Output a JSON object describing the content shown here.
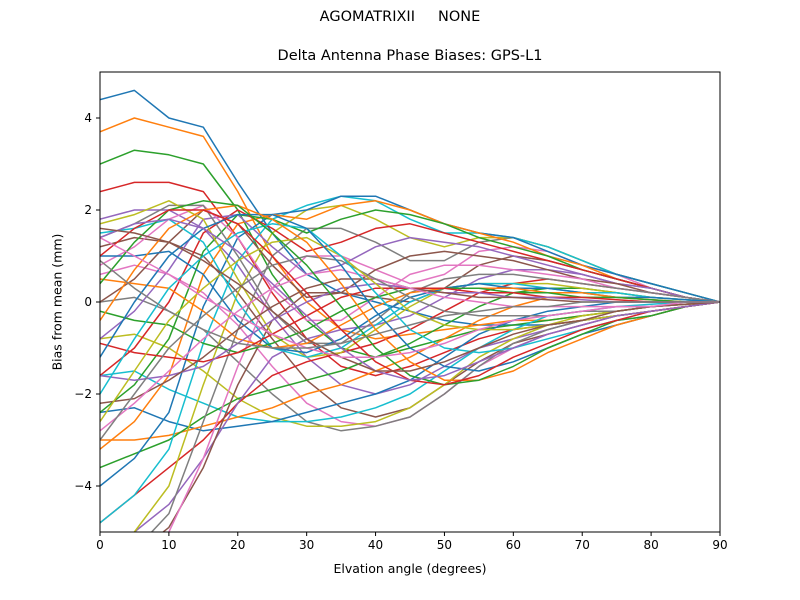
{
  "figure": {
    "suptitle": "AGOMATRIXII     NONE"
  },
  "chart_data": {
    "type": "line",
    "title": "Delta Antenna Phase Biases: GPS-L1",
    "xlabel": "Elvation angle (degrees)",
    "ylabel": "Bias from mean (mm)",
    "xlim": [
      0,
      90
    ],
    "ylim": [
      -5,
      5
    ],
    "xticks": [
      0,
      10,
      20,
      30,
      40,
      50,
      60,
      70,
      80,
      90
    ],
    "yticks": [
      -4,
      -2,
      0,
      2,
      4
    ],
    "grid": false,
    "legend": "none",
    "colors": [
      "#1f77b4",
      "#ff7f0e",
      "#2ca02c",
      "#d62728",
      "#9467bd",
      "#8c564b",
      "#e377c2",
      "#7f7f7f",
      "#bcbd22",
      "#17becf"
    ],
    "x": [
      0,
      5,
      10,
      15,
      20,
      25,
      30,
      35,
      40,
      45,
      50,
      55,
      60,
      65,
      70,
      75,
      80,
      85,
      90
    ],
    "series": [
      {
        "values": [
          4.4,
          4.6,
          4.0,
          3.8,
          2.6,
          1.5,
          0.6,
          0.2,
          0.0,
          -0.2,
          -0.4,
          -0.5,
          -0.5,
          -0.5,
          -0.4,
          -0.3,
          -0.2,
          -0.1,
          0.0
        ]
      },
      {
        "values": [
          3.7,
          4.0,
          3.8,
          3.6,
          2.4,
          1.0,
          0.0,
          -0.6,
          -0.8,
          -0.7,
          -0.6,
          -0.5,
          -0.4,
          -0.4,
          -0.3,
          -0.2,
          -0.1,
          -0.05,
          0.0
        ]
      },
      {
        "values": [
          3.0,
          3.3,
          3.2,
          3.0,
          2.0,
          0.6,
          -0.4,
          -1.0,
          -1.2,
          -1.0,
          -0.8,
          -0.6,
          -0.5,
          -0.4,
          -0.3,
          -0.2,
          -0.1,
          -0.05,
          0.0
        ]
      },
      {
        "values": [
          2.4,
          2.6,
          2.6,
          2.4,
          1.4,
          0.2,
          -0.8,
          -1.4,
          -1.6,
          -1.4,
          -1.1,
          -0.8,
          -0.6,
          -0.5,
          -0.4,
          -0.3,
          -0.2,
          -0.1,
          0.0
        ]
      },
      {
        "values": [
          1.8,
          2.0,
          2.0,
          1.6,
          0.8,
          -0.3,
          -1.2,
          -1.8,
          -2.0,
          -1.8,
          -1.4,
          -1.0,
          -0.8,
          -0.6,
          -0.4,
          -0.3,
          -0.2,
          -0.1,
          0.0
        ]
      },
      {
        "values": [
          1.2,
          1.4,
          1.3,
          1.0,
          0.2,
          -0.8,
          -1.7,
          -2.3,
          -2.5,
          -2.3,
          -1.8,
          -1.3,
          -0.9,
          -0.7,
          -0.5,
          -0.3,
          -0.2,
          -0.1,
          0.0
        ]
      },
      {
        "values": [
          0.6,
          0.8,
          0.6,
          0.2,
          -0.5,
          -1.4,
          -2.2,
          -2.6,
          -2.7,
          -2.5,
          -2.0,
          -1.4,
          -1.0,
          -0.7,
          -0.5,
          -0.3,
          -0.2,
          -0.1,
          0.0
        ]
      },
      {
        "values": [
          0.0,
          0.1,
          -0.2,
          -0.6,
          -1.3,
          -2.0,
          -2.6,
          -2.8,
          -2.7,
          -2.5,
          -2.0,
          -1.4,
          -0.9,
          -0.6,
          -0.4,
          -0.3,
          -0.2,
          -0.1,
          0.0
        ]
      },
      {
        "values": [
          -0.8,
          -0.7,
          -1.0,
          -1.5,
          -2.1,
          -2.5,
          -2.7,
          -2.7,
          -2.6,
          -2.3,
          -1.8,
          -1.2,
          -0.8,
          -0.5,
          -0.3,
          -0.2,
          -0.1,
          -0.05,
          0.0
        ]
      },
      {
        "values": [
          -1.6,
          -1.5,
          -1.9,
          -2.2,
          -2.5,
          -2.6,
          -2.6,
          -2.5,
          -2.3,
          -2.0,
          -1.5,
          -1.0,
          -0.6,
          -0.3,
          -0.2,
          -0.1,
          -0.05,
          0.0,
          0.0
        ]
      },
      {
        "values": [
          -2.4,
          -2.3,
          -2.6,
          -2.8,
          -2.7,
          -2.6,
          -2.4,
          -2.2,
          -2.0,
          -1.7,
          -1.2,
          -0.7,
          -0.4,
          -0.2,
          -0.1,
          0.0,
          0.0,
          0.0,
          0.0
        ]
      },
      {
        "values": [
          -3.0,
          -3.0,
          -2.9,
          -2.7,
          -2.5,
          -2.3,
          -2.0,
          -1.8,
          -1.5,
          -1.2,
          -0.8,
          -0.4,
          -0.1,
          0.1,
          0.1,
          0.1,
          0.05,
          0.0,
          0.0
        ]
      },
      {
        "values": [
          -3.6,
          -3.3,
          -3.0,
          -2.5,
          -2.1,
          -1.9,
          -1.7,
          -1.5,
          -1.2,
          -0.9,
          -0.5,
          -0.1,
          0.2,
          0.3,
          0.3,
          0.2,
          0.1,
          0.05,
          0.0
        ]
      },
      {
        "values": [
          -4.8,
          -4.2,
          -3.6,
          -3.0,
          -2.2,
          -1.6,
          -1.3,
          -1.1,
          -0.9,
          -0.6,
          -0.2,
          0.2,
          0.4,
          0.5,
          0.4,
          0.3,
          0.2,
          0.1,
          0.0
        ]
      },
      {
        "values": [
          -5.6,
          -5.0,
          -4.4,
          -3.4,
          -2.2,
          -1.2,
          -0.8,
          -0.6,
          -0.5,
          -0.3,
          0.1,
          0.5,
          0.7,
          0.7,
          0.6,
          0.4,
          0.3,
          0.1,
          0.0
        ]
      },
      {
        "values": [
          -6.0,
          -5.5,
          -4.9,
          -3.6,
          -1.8,
          -0.4,
          0.2,
          0.2,
          0.1,
          0.0,
          0.3,
          0.8,
          1.0,
          0.9,
          0.7,
          0.5,
          0.3,
          0.1,
          0.0
        ]
      },
      {
        "values": [
          -6.0,
          -5.6,
          -5.0,
          -3.4,
          -1.4,
          0.3,
          1.0,
          1.0,
          0.7,
          0.4,
          0.6,
          1.1,
          1.2,
          1.1,
          0.8,
          0.6,
          0.3,
          0.1,
          0.0
        ]
      },
      {
        "values": [
          -5.8,
          -5.4,
          -4.6,
          -2.6,
          -0.6,
          1.0,
          1.6,
          1.6,
          1.3,
          0.9,
          0.9,
          1.3,
          1.4,
          1.2,
          0.9,
          0.6,
          0.4,
          0.2,
          0.0
        ]
      },
      {
        "values": [
          -5.4,
          -5.0,
          -4.0,
          -1.8,
          0.2,
          1.5,
          2.0,
          2.1,
          1.8,
          1.4,
          1.2,
          1.4,
          1.4,
          1.2,
          0.9,
          0.6,
          0.4,
          0.2,
          0.0
        ]
      },
      {
        "values": [
          -4.8,
          -4.2,
          -3.2,
          -0.9,
          0.9,
          1.8,
          2.1,
          2.3,
          2.2,
          1.8,
          1.5,
          1.5,
          1.4,
          1.2,
          0.9,
          0.6,
          0.4,
          0.2,
          0.0
        ]
      },
      {
        "values": [
          -4.0,
          -3.4,
          -2.4,
          -0.1,
          1.4,
          1.9,
          2.0,
          2.3,
          2.3,
          2.0,
          1.7,
          1.5,
          1.4,
          1.1,
          0.8,
          0.6,
          0.4,
          0.2,
          0.0
        ]
      },
      {
        "values": [
          -3.2,
          -2.6,
          -1.6,
          0.6,
          1.7,
          1.9,
          1.8,
          2.1,
          2.2,
          2.0,
          1.7,
          1.5,
          1.3,
          1.0,
          0.8,
          0.5,
          0.3,
          0.1,
          0.0
        ]
      },
      {
        "values": [
          -2.4,
          -1.8,
          -0.8,
          1.1,
          1.9,
          1.8,
          1.5,
          1.8,
          2.0,
          1.9,
          1.7,
          1.4,
          1.2,
          1.0,
          0.7,
          0.5,
          0.3,
          0.1,
          0.0
        ]
      },
      {
        "values": [
          -1.6,
          -1.0,
          0.0,
          1.5,
          2.0,
          1.6,
          1.1,
          1.3,
          1.6,
          1.7,
          1.5,
          1.3,
          1.1,
          0.9,
          0.7,
          0.5,
          0.3,
          0.1,
          0.0
        ]
      },
      {
        "values": [
          -0.8,
          -0.2,
          0.7,
          1.8,
          1.9,
          1.2,
          0.6,
          0.8,
          1.2,
          1.4,
          1.3,
          1.2,
          1.0,
          0.8,
          0.6,
          0.4,
          0.3,
          0.1,
          0.0
        ]
      },
      {
        "values": [
          0.0,
          0.5,
          1.3,
          2.0,
          1.7,
          0.8,
          0.1,
          0.2,
          0.7,
          1.0,
          1.1,
          1.0,
          0.9,
          0.7,
          0.5,
          0.4,
          0.2,
          0.1,
          0.0
        ]
      },
      {
        "values": [
          0.8,
          1.2,
          1.8,
          2.1,
          1.4,
          0.3,
          -0.4,
          -0.4,
          0.1,
          0.6,
          0.8,
          0.8,
          0.7,
          0.6,
          0.5,
          0.3,
          0.2,
          0.1,
          0.0
        ]
      },
      {
        "values": [
          1.4,
          1.7,
          2.1,
          2.1,
          1.0,
          -0.2,
          -0.9,
          -0.9,
          -0.4,
          0.2,
          0.5,
          0.6,
          0.6,
          0.5,
          0.4,
          0.3,
          0.2,
          0.1,
          0.0
        ]
      },
      {
        "values": [
          1.7,
          1.9,
          2.2,
          1.8,
          0.5,
          -0.7,
          -1.2,
          -1.1,
          -0.6,
          -0.1,
          0.3,
          0.4,
          0.4,
          0.4,
          0.3,
          0.2,
          0.1,
          0.05,
          0.0
        ]
      },
      {
        "values": [
          1.5,
          1.6,
          1.8,
          1.3,
          0.0,
          -1.0,
          -1.2,
          -1.0,
          -0.5,
          0.0,
          0.3,
          0.4,
          0.4,
          0.3,
          0.2,
          0.2,
          0.1,
          0.05,
          0.0
        ]
      },
      {
        "values": [
          1.0,
          1.0,
          1.1,
          0.6,
          -0.4,
          -1.0,
          -1.1,
          -0.8,
          -0.3,
          0.1,
          0.3,
          0.4,
          0.3,
          0.3,
          0.2,
          0.1,
          0.1,
          0.05,
          0.0
        ]
      },
      {
        "values": [
          0.5,
          0.4,
          0.3,
          -0.2,
          -0.8,
          -1.0,
          -0.9,
          -0.5,
          -0.1,
          0.2,
          0.3,
          0.3,
          0.3,
          0.2,
          0.2,
          0.1,
          0.05,
          0.0,
          0.0
        ]
      },
      {
        "values": [
          -0.2,
          -0.4,
          -0.5,
          -0.9,
          -1.1,
          -0.9,
          -0.6,
          -0.2,
          0.1,
          0.3,
          0.3,
          0.3,
          0.2,
          0.2,
          0.1,
          0.1,
          0.05,
          0.0,
          0.0
        ]
      },
      {
        "values": [
          -0.9,
          -1.1,
          -1.2,
          -1.3,
          -1.1,
          -0.7,
          -0.3,
          0.1,
          0.3,
          0.3,
          0.3,
          0.2,
          0.2,
          0.1,
          0.1,
          0.05,
          0.0,
          0.0,
          0.0
        ]
      },
      {
        "values": [
          -1.6,
          -1.7,
          -1.6,
          -1.4,
          -0.9,
          -0.4,
          0.0,
          0.3,
          0.4,
          0.3,
          0.2,
          0.2,
          0.1,
          0.1,
          0.05,
          0.0,
          0.0,
          0.0,
          0.0
        ]
      },
      {
        "values": [
          -2.2,
          -2.1,
          -1.7,
          -1.2,
          -0.6,
          -0.1,
          0.3,
          0.5,
          0.5,
          0.3,
          0.2,
          0.1,
          0.1,
          0.05,
          0.0,
          0.0,
          0.0,
          0.0,
          0.0
        ]
      },
      {
        "values": [
          -2.8,
          -2.2,
          -1.5,
          -0.8,
          -0.2,
          0.3,
          0.6,
          0.7,
          0.5,
          0.3,
          0.1,
          0.0,
          -0.1,
          -0.1,
          -0.1,
          -0.1,
          -0.1,
          -0.05,
          0.0
        ]
      },
      {
        "values": [
          -3.0,
          -2.0,
          -1.0,
          -0.3,
          0.3,
          0.8,
          1.0,
          0.9,
          0.5,
          0.1,
          -0.2,
          -0.3,
          -0.3,
          -0.3,
          -0.2,
          -0.2,
          -0.1,
          -0.05,
          0.0
        ]
      },
      {
        "values": [
          -2.6,
          -1.5,
          -0.4,
          0.3,
          0.9,
          1.3,
          1.4,
          1.0,
          0.4,
          -0.2,
          -0.5,
          -0.6,
          -0.6,
          -0.5,
          -0.4,
          -0.3,
          -0.2,
          -0.1,
          0.0
        ]
      },
      {
        "values": [
          -2.0,
          -0.8,
          0.3,
          1.0,
          1.5,
          1.7,
          1.6,
          1.0,
          0.2,
          -0.6,
          -1.0,
          -1.1,
          -1.0,
          -0.8,
          -0.6,
          -0.4,
          -0.3,
          -0.1,
          0.0
        ]
      },
      {
        "values": [
          -1.2,
          0.0,
          1.0,
          1.6,
          1.9,
          1.9,
          1.6,
          0.8,
          -0.2,
          -1.0,
          -1.4,
          -1.5,
          -1.3,
          -1.0,
          -0.7,
          -0.5,
          -0.3,
          -0.1,
          0.0
        ]
      },
      {
        "values": [
          -0.4,
          0.7,
          1.6,
          2.0,
          2.1,
          1.8,
          1.3,
          0.4,
          -0.6,
          -1.3,
          -1.7,
          -1.7,
          -1.5,
          -1.1,
          -0.8,
          -0.5,
          -0.3,
          -0.1,
          0.0
        ]
      },
      {
        "values": [
          0.4,
          1.3,
          2.0,
          2.2,
          2.1,
          1.5,
          0.8,
          -0.1,
          -1.0,
          -1.6,
          -1.8,
          -1.7,
          -1.4,
          -1.0,
          -0.7,
          -0.4,
          -0.3,
          -0.1,
          0.0
        ]
      },
      {
        "values": [
          1.0,
          1.6,
          2.0,
          2.0,
          1.7,
          1.0,
          0.2,
          -0.6,
          -1.3,
          -1.7,
          -1.8,
          -1.6,
          -1.2,
          -0.9,
          -0.6,
          -0.4,
          -0.2,
          -0.1,
          0.0
        ]
      },
      {
        "values": [
          1.4,
          1.7,
          1.8,
          1.6,
          1.1,
          0.4,
          -0.3,
          -1.0,
          -1.5,
          -1.7,
          -1.6,
          -1.3,
          -1.0,
          -0.7,
          -0.5,
          -0.3,
          -0.2,
          -0.1,
          0.0
        ]
      },
      {
        "values": [
          1.6,
          1.5,
          1.3,
          0.9,
          0.4,
          -0.2,
          -0.8,
          -1.2,
          -1.5,
          -1.5,
          -1.3,
          -1.0,
          -0.7,
          -0.5,
          -0.4,
          -0.2,
          -0.1,
          -0.05,
          0.0
        ]
      },
      {
        "values": [
          1.4,
          1.0,
          0.6,
          0.1,
          -0.3,
          -0.7,
          -1.0,
          -1.2,
          -1.2,
          -1.1,
          -0.9,
          -0.6,
          -0.4,
          -0.3,
          -0.2,
          -0.1,
          -0.1,
          0.0,
          0.0
        ]
      },
      {
        "values": [
          0.9,
          0.3,
          -0.2,
          -0.6,
          -0.9,
          -1.0,
          -1.0,
          -0.9,
          -0.7,
          -0.5,
          -0.3,
          -0.2,
          -0.1,
          -0.1,
          0.0,
          0.0,
          0.0,
          0.0,
          0.0
        ]
      }
    ]
  }
}
